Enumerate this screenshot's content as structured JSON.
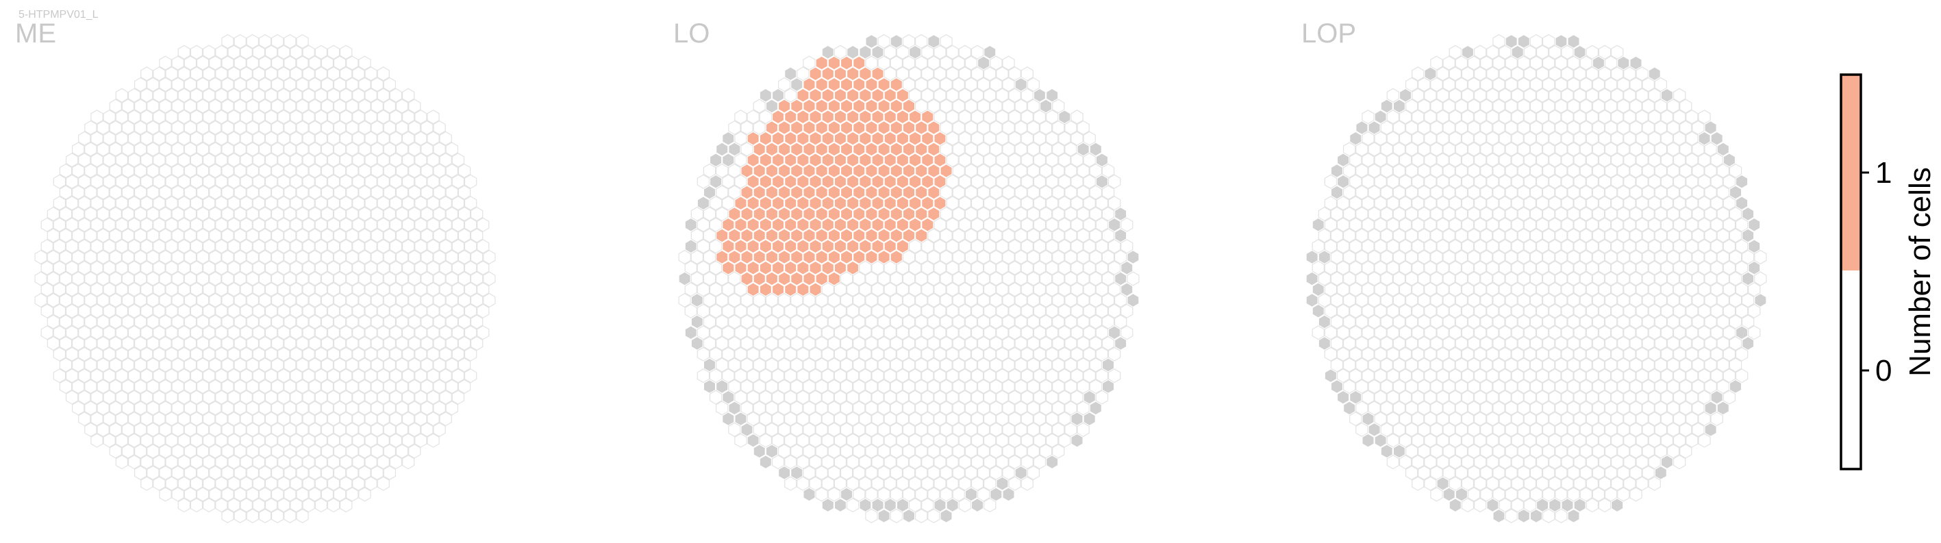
{
  "cell_type": "5-HTPMPV01_L",
  "colors": {
    "hex_outline": "#e3e3e3",
    "empty_fill": "#ffffff",
    "edge_fill": "#d0d0d0",
    "count_fill": "#f7ae92",
    "title": "#c8c8c8"
  },
  "colorbar": {
    "label": "Number of cells",
    "ticks": [
      "1",
      "0"
    ],
    "color_top": "#f7ae92",
    "color_bottom": "#ffffff"
  },
  "chart_data": [
    {
      "type": "heatmap",
      "title": "ME",
      "values": "all columns 0 cells",
      "cell_count_present": 0
    },
    {
      "type": "heatmap",
      "title": "LO",
      "values": "dorsal-anterior cluster of columns with 1 cell; all others 0",
      "cell_count_present": 1
    },
    {
      "type": "heatmap",
      "title": "LOP",
      "values": "all columns 0 cells",
      "cell_count_present": 0
    }
  ]
}
